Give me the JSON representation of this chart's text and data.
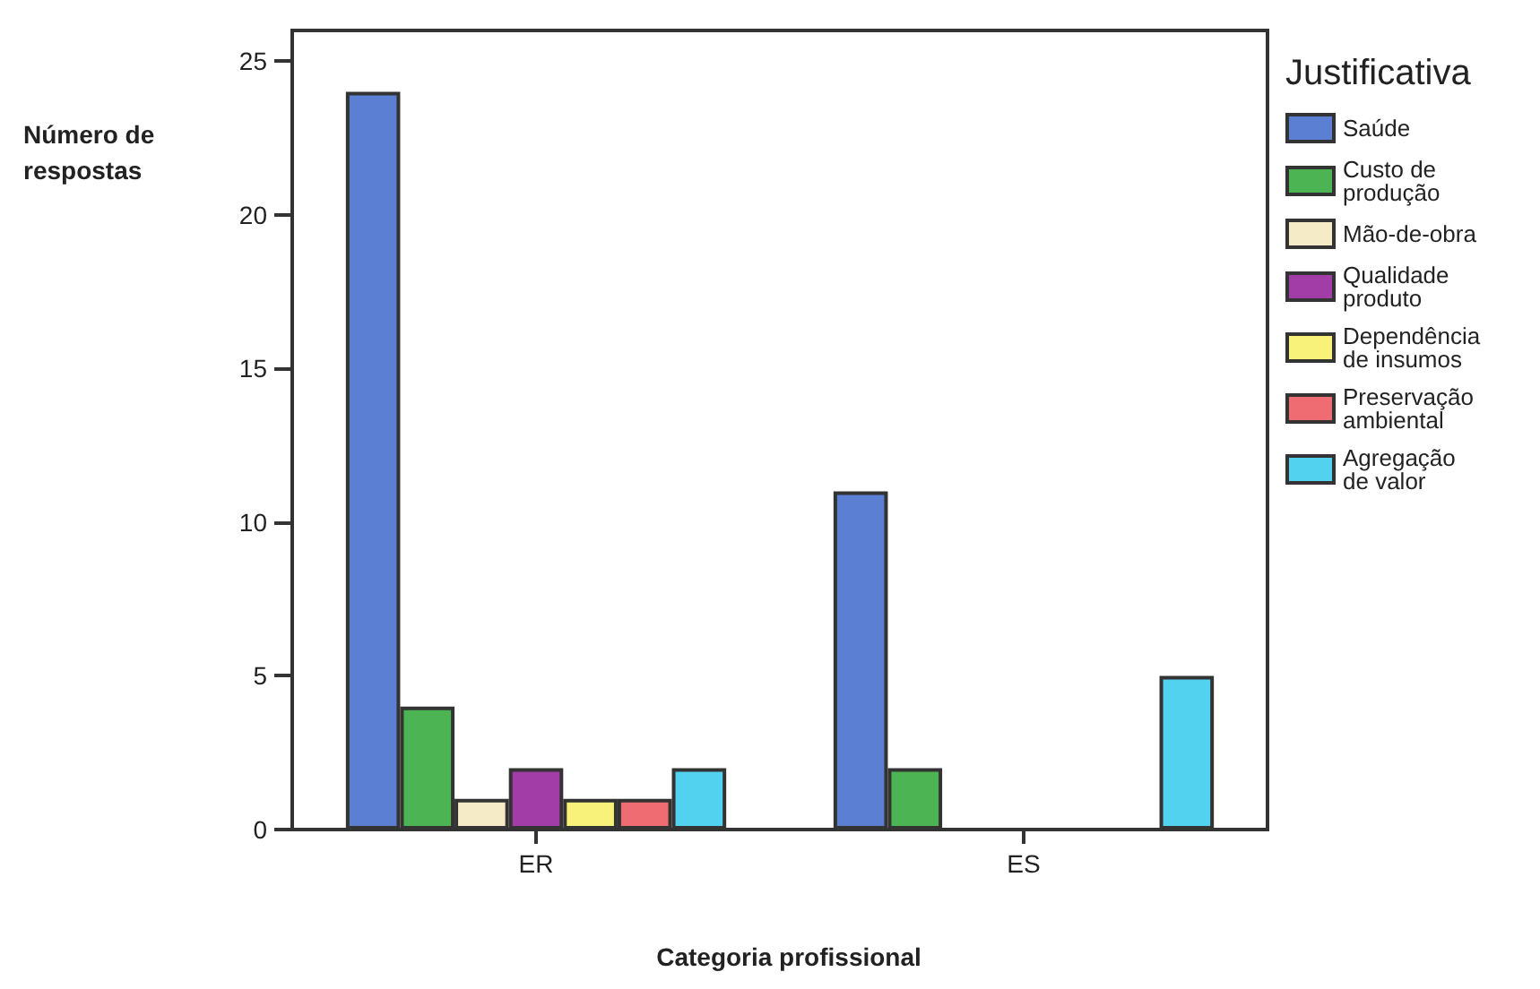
{
  "chart_data": {
    "type": "bar",
    "xlabel": "Categoria profissional",
    "ylabel": "Número de respostas",
    "legend_title": "Justificativa",
    "categories": [
      "ER",
      "ES"
    ],
    "series": [
      {
        "name": "Saúde",
        "color": "#5b7fd2",
        "values": [
          24,
          11
        ]
      },
      {
        "name": "Custo de produção",
        "color": "#4cb452",
        "values": [
          4,
          2
        ]
      },
      {
        "name": "Mão-de-obra",
        "color": "#f5ebc6",
        "values": [
          1,
          0
        ]
      },
      {
        "name": "Qualidade produto",
        "color": "#a23ca6",
        "values": [
          2,
          0
        ]
      },
      {
        "name": "Dependência de insumos",
        "color": "#f8f27a",
        "values": [
          1,
          0
        ]
      },
      {
        "name": "Preservação ambiental",
        "color": "#ee6c72",
        "values": [
          1,
          0
        ]
      },
      {
        "name": "Agregação de valor",
        "color": "#52d2ee",
        "values": [
          2,
          5
        ]
      }
    ],
    "ylim": [
      0,
      26
    ],
    "yticks": [
      0,
      5,
      10,
      15,
      20,
      25
    ],
    "grid": false,
    "legend": "right"
  }
}
